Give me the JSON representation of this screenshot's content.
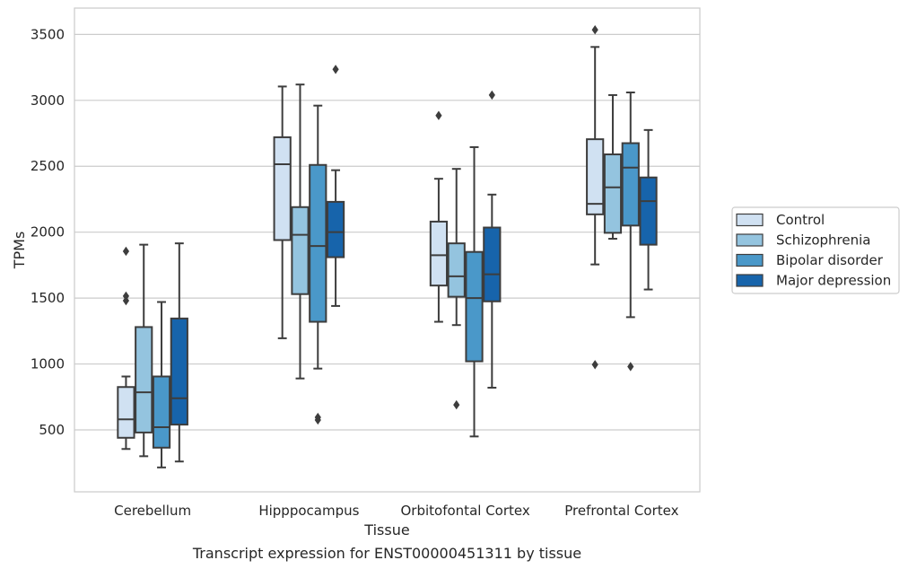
{
  "chart_data": {
    "type": "boxplot",
    "caption": "Transcript expression for ENST00000451311 by tissue",
    "xlabel": "Tissue",
    "ylabel": "TPMs",
    "ylim": [
      30,
      3700
    ],
    "yticks": [
      500,
      1000,
      1500,
      2000,
      2500,
      3000,
      3500
    ],
    "grid": true,
    "legend_position": "right",
    "categories": [
      "Cerebellum",
      "Hipppocampus",
      "Orbitofontal Cortex",
      "Prefrontal Cortex"
    ],
    "series": [
      {
        "name": "Control",
        "color": "#d0e1f2",
        "boxes": [
          {
            "whisker_low": 355,
            "q1": 440,
            "median": 580,
            "q3": 825,
            "whisker_high": 905,
            "outliers": [
              1480,
              1515,
              1855
            ]
          },
          {
            "whisker_low": 1195,
            "q1": 1940,
            "median": 2515,
            "q3": 2720,
            "whisker_high": 3105,
            "outliers": []
          },
          {
            "whisker_low": 1320,
            "q1": 1595,
            "median": 1825,
            "q3": 2080,
            "whisker_high": 2405,
            "outliers": [
              2885
            ]
          },
          {
            "whisker_low": 1755,
            "q1": 2135,
            "median": 2215,
            "q3": 2705,
            "whisker_high": 3405,
            "outliers": [
              995,
              3535
            ]
          }
        ]
      },
      {
        "name": "Schizophrenia",
        "color": "#94c4df",
        "boxes": [
          {
            "whisker_low": 300,
            "q1": 480,
            "median": 785,
            "q3": 1280,
            "whisker_high": 1905,
            "outliers": []
          },
          {
            "whisker_low": 890,
            "q1": 1530,
            "median": 1980,
            "q3": 2190,
            "whisker_high": 3120,
            "outliers": []
          },
          {
            "whisker_low": 1295,
            "q1": 1510,
            "median": 1665,
            "q3": 1915,
            "whisker_high": 2480,
            "outliers": [
              690
            ]
          },
          {
            "whisker_low": 1950,
            "q1": 1995,
            "median": 2340,
            "q3": 2590,
            "whisker_high": 3040,
            "outliers": []
          }
        ]
      },
      {
        "name": "Bipolar disorder",
        "color": "#4a98c9",
        "boxes": [
          {
            "whisker_low": 215,
            "q1": 365,
            "median": 520,
            "q3": 905,
            "whisker_high": 1470,
            "outliers": []
          },
          {
            "whisker_low": 965,
            "q1": 1320,
            "median": 1895,
            "q3": 2510,
            "whisker_high": 2960,
            "outliers": [
              575,
              595
            ]
          },
          {
            "whisker_low": 450,
            "q1": 1020,
            "median": 1500,
            "q3": 1850,
            "whisker_high": 2645,
            "outliers": []
          },
          {
            "whisker_low": 1355,
            "q1": 2050,
            "median": 2490,
            "q3": 2675,
            "whisker_high": 3060,
            "outliers": [
              980
            ]
          }
        ]
      },
      {
        "name": "Major depression",
        "color": "#1764ab",
        "boxes": [
          {
            "whisker_low": 260,
            "q1": 540,
            "median": 740,
            "q3": 1345,
            "whisker_high": 1915,
            "outliers": []
          },
          {
            "whisker_low": 1440,
            "q1": 1810,
            "median": 2000,
            "q3": 2230,
            "whisker_high": 2470,
            "outliers": [
              3235
            ]
          },
          {
            "whisker_low": 820,
            "q1": 1475,
            "median": 1680,
            "q3": 2035,
            "whisker_high": 2285,
            "outliers": [
              3040
            ]
          },
          {
            "whisker_low": 1565,
            "q1": 1905,
            "median": 2235,
            "q3": 2415,
            "whisker_high": 2775,
            "outliers": []
          }
        ]
      }
    ]
  }
}
